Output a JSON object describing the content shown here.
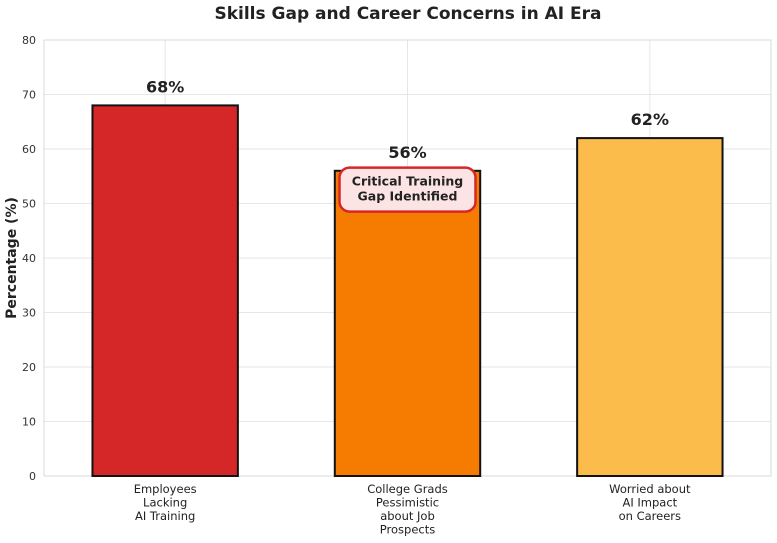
{
  "chart_data": {
    "type": "bar",
    "title": "Skills Gap and Career Concerns in AI Era",
    "ylabel": "Percentage (%)",
    "xlabel": "",
    "ylim": [
      0,
      80
    ],
    "yticks": [
      0,
      10,
      20,
      30,
      40,
      50,
      60,
      70,
      80
    ],
    "grid": true,
    "categories": [
      [
        "Employees",
        "Lacking",
        "AI Training"
      ],
      [
        "College Grads",
        "Pessimistic",
        "about Job",
        "Prospects"
      ],
      [
        "Worried about",
        "AI Impact",
        "on Careers"
      ]
    ],
    "values": [
      68,
      56,
      62
    ],
    "data_labels": [
      "68%",
      "56%",
      "62%"
    ],
    "colors": [
      "#d62728",
      "#f57c00",
      "#fbbc4c"
    ],
    "annotation": {
      "lines": [
        "Critical Training",
        "Gap Identified"
      ],
      "bar_index": 1,
      "y": 52,
      "box_fill": "#fde4e4",
      "box_edge": "#d62728"
    }
  }
}
